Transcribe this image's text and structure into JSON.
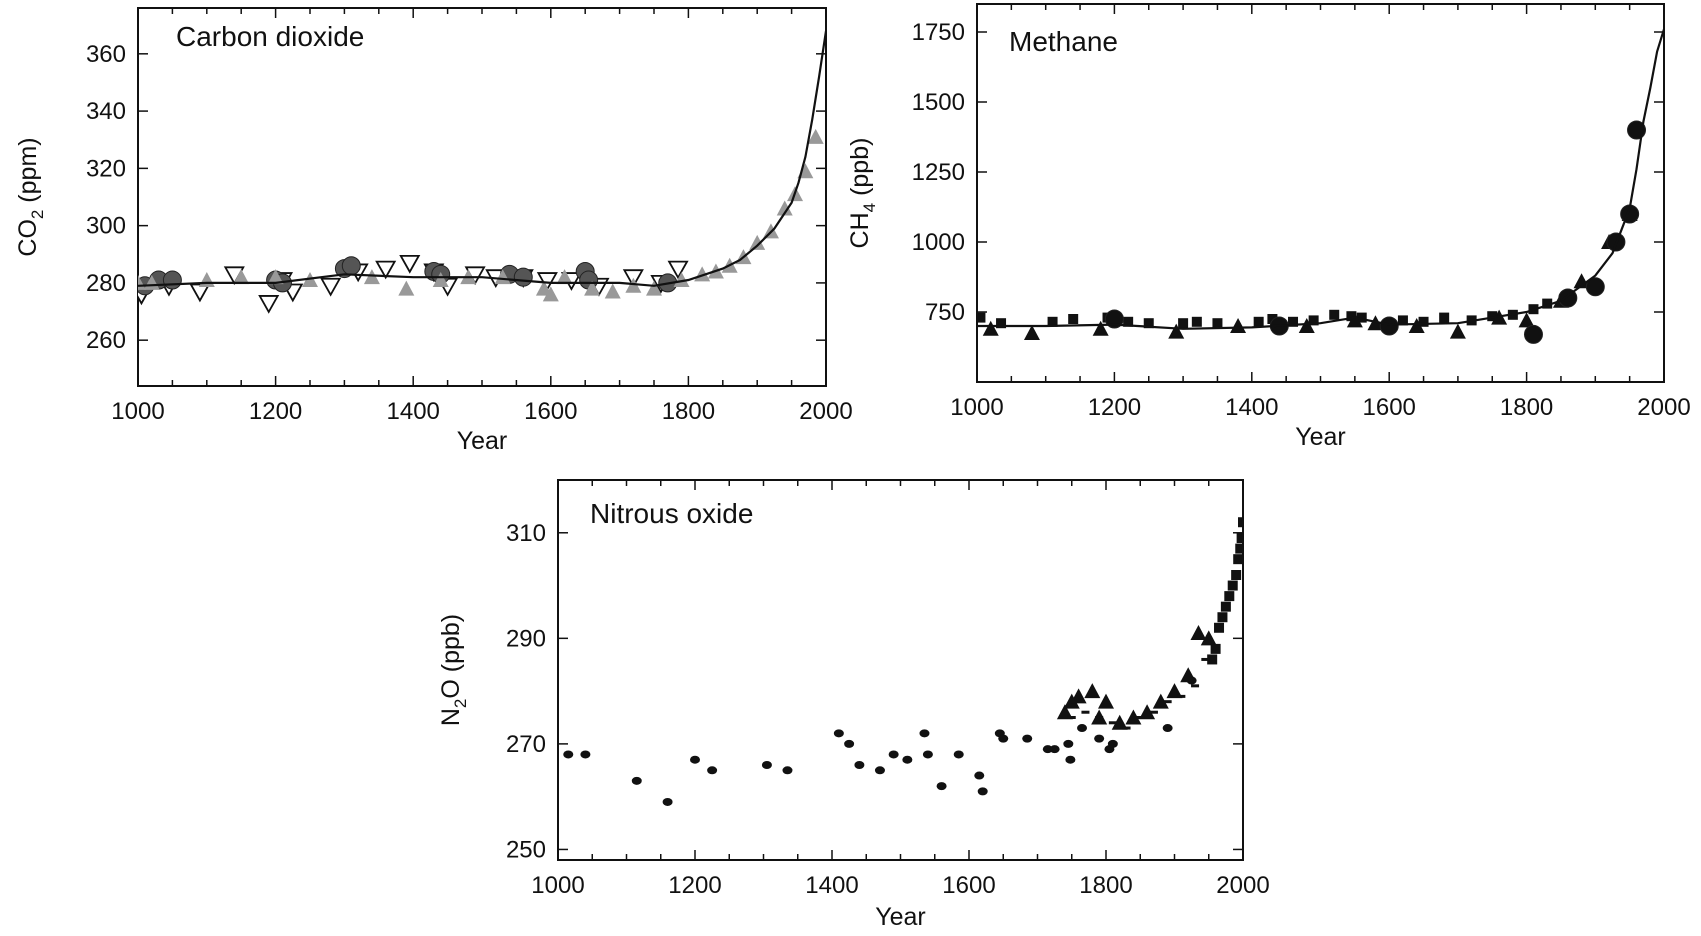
{
  "chart_data": [
    {
      "id": "co2",
      "type": "scatter",
      "title": "Carbon dioxide",
      "xlabel": "Year",
      "ylabel": {
        "pre": "CO",
        "sub": "2",
        "post": "  (ppm)"
      },
      "xlim": [
        1000,
        2000
      ],
      "ylim": [
        244,
        376
      ],
      "xticks": [
        1000,
        1200,
        1400,
        1600,
        1800,
        2000
      ],
      "yticks": [
        260,
        280,
        300,
        320,
        340,
        360
      ],
      "series": [
        {
          "marker": "open-triangle-down",
          "color": "#111111",
          "x": [
            1005,
            1045,
            1090,
            1140,
            1190,
            1210,
            1225,
            1280,
            1320,
            1360,
            1395,
            1430,
            1450,
            1490,
            1520,
            1560,
            1595,
            1630,
            1670,
            1720,
            1760,
            1785
          ],
          "y": [
            276,
            279,
            277,
            283,
            273,
            281,
            277,
            279,
            284,
            285,
            287,
            284,
            279,
            283,
            282,
            282,
            281,
            281,
            279,
            282,
            280,
            285
          ]
        },
        {
          "marker": "filled-circle",
          "color": "#555555",
          "x": [
            1010,
            1030,
            1050,
            1200,
            1210,
            1300,
            1310,
            1430,
            1440,
            1540,
            1560,
            1650,
            1655,
            1770
          ],
          "y": [
            279,
            281,
            281,
            281,
            280,
            285,
            286,
            284,
            283,
            283,
            282,
            284,
            281,
            280
          ]
        },
        {
          "marker": "filled-triangle-up",
          "color": "#999999",
          "x": [
            1000,
            1020,
            1100,
            1150,
            1200,
            1250,
            1340,
            1390,
            1440,
            1480,
            1530,
            1590,
            1600,
            1620,
            1660,
            1690,
            1720,
            1750,
            1790,
            1820,
            1840,
            1860,
            1880,
            1900,
            1920,
            1940,
            1955,
            1970,
            1985
          ],
          "y": [
            280,
            280,
            281,
            282,
            282,
            281,
            282,
            278,
            281,
            282,
            282,
            278,
            276,
            282,
            278,
            277,
            279,
            278,
            281,
            283,
            284,
            286,
            289,
            294,
            298,
            306,
            311,
            319,
            331
          ]
        }
      ],
      "line": {
        "x": [
          1000,
          1100,
          1200,
          1300,
          1400,
          1500,
          1600,
          1700,
          1750,
          1800,
          1850,
          1875,
          1900,
          1925,
          1950,
          1960,
          1970,
          1980,
          1990,
          2000
        ],
        "y": [
          279,
          280,
          280,
          283,
          282,
          282,
          280,
          280,
          279,
          281,
          285,
          288,
          293,
          299,
          308,
          315,
          324,
          337,
          352,
          368
        ]
      }
    },
    {
      "id": "ch4",
      "type": "scatter",
      "title": "Methane",
      "xlabel": "Year",
      "ylabel": {
        "pre": "CH",
        "sub": "4",
        "post": "  (ppb)"
      },
      "xlim": [
        1000,
        2000
      ],
      "ylim": [
        500,
        1850
      ],
      "xticks": [
        1000,
        1200,
        1400,
        1600,
        1800,
        2000
      ],
      "yticks": [
        750,
        1000,
        1250,
        1500,
        1750
      ],
      "series": [
        {
          "marker": "filled-square",
          "color": "#111111",
          "x": [
            1005,
            1035,
            1110,
            1140,
            1190,
            1220,
            1250,
            1300,
            1320,
            1350,
            1410,
            1430,
            1460,
            1490,
            1520,
            1545,
            1560,
            1600,
            1620,
            1650,
            1680,
            1720,
            1750,
            1780,
            1810,
            1830
          ],
          "y": [
            730,
            710,
            715,
            725,
            730,
            715,
            710,
            710,
            715,
            710,
            715,
            725,
            715,
            720,
            740,
            735,
            730,
            700,
            720,
            715,
            730,
            720,
            735,
            740,
            760,
            780
          ]
        },
        {
          "marker": "filled-triangle-up",
          "color": "#111111",
          "x": [
            1020,
            1080,
            1180,
            1290,
            1380,
            1480,
            1550,
            1580,
            1640,
            1700,
            1760,
            1800,
            1850,
            1880,
            1920,
            1950
          ],
          "y": [
            690,
            675,
            690,
            680,
            700,
            700,
            720,
            710,
            700,
            680,
            730,
            720,
            790,
            860,
            1000,
            1100
          ]
        },
        {
          "marker": "filled-circle",
          "color": "#111111",
          "x": [
            1200,
            1440,
            1600,
            1810,
            1860,
            1900,
            1930,
            1950,
            1960
          ],
          "y": [
            725,
            700,
            700,
            670,
            800,
            840,
            1000,
            1100,
            1400
          ]
        }
      ],
      "line": {
        "x": [
          1000,
          1100,
          1200,
          1300,
          1400,
          1500,
          1550,
          1600,
          1700,
          1750,
          1800,
          1850,
          1900,
          1925,
          1950,
          1960,
          1970,
          1980,
          1990,
          2000
        ],
        "y": [
          700,
          700,
          705,
          690,
          695,
          710,
          730,
          705,
          710,
          730,
          750,
          790,
          880,
          960,
          1120,
          1260,
          1430,
          1550,
          1680,
          1760
        ]
      }
    },
    {
      "id": "n2o",
      "type": "scatter",
      "title": "Nitrous oxide",
      "xlabel": "Year",
      "ylabel": {
        "pre": "N",
        "sub": "2",
        "post": "O  (ppb)"
      },
      "xlim": [
        1000,
        2000
      ],
      "ylim": [
        248,
        320
      ],
      "xticks": [
        1000,
        1200,
        1400,
        1600,
        1800,
        2000
      ],
      "yticks": [
        250,
        270,
        290,
        310
      ],
      "series": [
        {
          "marker": "filled-ellipse",
          "color": "#111111",
          "x": [
            1015,
            1040,
            1115,
            1160,
            1200,
            1225,
            1305,
            1335,
            1410,
            1425,
            1440,
            1470,
            1490,
            1510,
            1535,
            1540,
            1560,
            1585,
            1615,
            1620,
            1645,
            1650,
            1685,
            1715,
            1725,
            1745,
            1748,
            1765,
            1790,
            1805,
            1810,
            1890,
            1925
          ],
          "y": [
            268,
            268,
            263,
            259,
            267,
            265,
            266,
            265,
            272,
            270,
            266,
            265,
            268,
            267,
            272,
            268,
            262,
            268,
            264,
            261,
            272,
            271,
            271,
            269,
            269,
            270,
            267,
            273,
            271,
            269,
            270,
            273,
            282
          ]
        },
        {
          "marker": "filled-triangle-up",
          "color": "#111111",
          "x": [
            1740,
            1750,
            1760,
            1780,
            1790,
            1800,
            1820,
            1840,
            1860,
            1880,
            1900,
            1920,
            1935,
            1950
          ],
          "y": [
            276,
            278,
            279,
            280,
            275,
            278,
            274,
            275,
            276,
            278,
            280,
            283,
            291,
            290
          ]
        },
        {
          "marker": "filled-square",
          "color": "#111111",
          "x": [
            1955,
            1960,
            1965,
            1970,
            1975,
            1980,
            1985,
            1990,
            1993,
            1996,
            1998,
            2000
          ],
          "y": [
            286,
            288,
            292,
            294,
            296,
            298,
            300,
            302,
            305,
            307,
            309,
            312
          ]
        },
        {
          "marker": "small-dash",
          "color": "#111111",
          "x": [
            1750,
            1770,
            1790,
            1810,
            1830,
            1850,
            1870,
            1890,
            1910,
            1930,
            1945
          ],
          "y": [
            275,
            276,
            275,
            274,
            273,
            275,
            276,
            278,
            279,
            281,
            286
          ]
        }
      ]
    }
  ]
}
